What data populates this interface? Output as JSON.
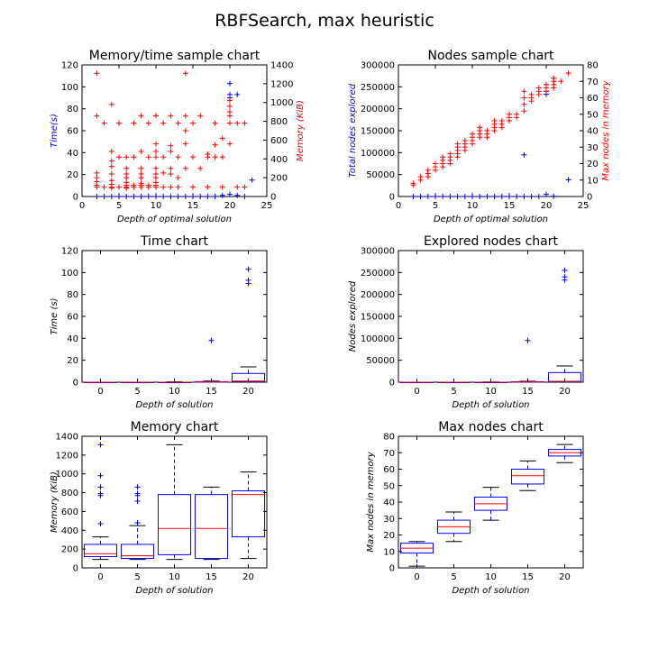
{
  "figure": {
    "title": "RBFSearch, max heuristic"
  },
  "colors": {
    "blue": "#0000ff",
    "red": "#ff0000",
    "axis": "#000000"
  },
  "chart_data": [
    {
      "id": "mem-time",
      "type": "scatter",
      "title": "Memory/time sample chart",
      "xlabel": "Depth of optimal solution",
      "ylabel": "Time(s)",
      "y2label": "Memory (KiB)",
      "xlim": [
        0,
        25
      ],
      "ylim": [
        0,
        120
      ],
      "y2lim": [
        0,
        1400
      ],
      "xticks": [
        0,
        5,
        10,
        15,
        20,
        25
      ],
      "yticks": [
        0,
        20,
        40,
        60,
        80,
        100,
        120
      ],
      "y2ticks": [
        0,
        200,
        400,
        600,
        800,
        1000,
        1200,
        1400
      ],
      "series": [
        {
          "axis": "left",
          "color": "#0000ff",
          "x": [
            2,
            3,
            4,
            5,
            6,
            7,
            8,
            9,
            10,
            11,
            12,
            13,
            14,
            15,
            16,
            17,
            18,
            19,
            20,
            20,
            20,
            20,
            21,
            21,
            22,
            23
          ],
          "y": [
            0,
            0,
            0,
            0,
            0,
            0,
            0,
            0,
            0,
            0,
            0,
            0,
            0,
            0,
            0,
            0,
            0,
            1,
            103,
            90,
            93,
            2,
            93,
            1,
            0,
            15
          ]
        },
        {
          "axis": "right",
          "color": "#ff0000",
          "x": [
            2,
            2,
            2,
            2,
            2,
            2,
            2,
            3,
            3,
            4,
            4,
            4,
            4,
            4,
            4,
            4,
            4,
            4,
            5,
            5,
            5,
            6,
            6,
            6,
            6,
            6,
            6,
            6,
            6,
            7,
            7,
            7,
            7,
            8,
            8,
            8,
            8,
            8,
            8,
            8,
            8,
            9,
            9,
            9,
            9,
            10,
            10,
            10,
            10,
            10,
            10,
            10,
            10,
            10,
            10,
            10,
            11,
            11,
            11,
            11,
            12,
            12,
            12,
            12,
            12,
            12,
            13,
            13,
            13,
            13,
            14,
            14,
            14,
            14,
            14,
            15,
            15,
            15,
            16,
            16,
            17,
            17,
            17,
            18,
            18,
            18,
            19,
            19,
            19,
            20,
            20,
            20,
            20,
            20,
            20,
            21,
            21,
            22,
            22
          ],
          "y": [
            1310,
            860,
            250,
            200,
            160,
            120,
            100,
            780,
            100,
            980,
            480,
            380,
            320,
            240,
            170,
            130,
            100,
            90,
            780,
            420,
            100,
            420,
            300,
            240,
            200,
            150,
            120,
            100,
            90,
            780,
            420,
            120,
            100,
            860,
            480,
            300,
            240,
            200,
            140,
            120,
            100,
            780,
            420,
            120,
            100,
            860,
            860,
            560,
            480,
            420,
            300,
            240,
            200,
            150,
            120,
            100,
            780,
            420,
            250,
            100,
            860,
            540,
            480,
            300,
            240,
            100,
            780,
            420,
            200,
            100,
            1310,
            860,
            700,
            560,
            300,
            780,
            420,
            100,
            860,
            300,
            420,
            450,
            100,
            780,
            550,
            420,
            620,
            420,
            100,
            1020,
            960,
            900,
            860,
            780,
            560,
            780,
            100,
            780,
            100
          ]
        }
      ]
    },
    {
      "id": "nodes-sample",
      "type": "scatter",
      "title": "Nodes sample chart",
      "xlabel": "Depth of optimal solution",
      "ylabel": "Total nodes explored",
      "y2label": "Max nodes in memory",
      "xlim": [
        0,
        25
      ],
      "ylim": [
        0,
        300000
      ],
      "y2lim": [
        0,
        80
      ],
      "xticks": [
        0,
        5,
        10,
        15,
        20,
        25
      ],
      "yticks": [
        0,
        50000,
        100000,
        150000,
        200000,
        250000,
        300000
      ],
      "y2ticks": [
        0,
        10,
        20,
        30,
        40,
        50,
        60,
        70,
        80
      ],
      "series": [
        {
          "axis": "left",
          "color": "#0000ff",
          "x": [
            2,
            3,
            4,
            5,
            6,
            7,
            8,
            9,
            10,
            11,
            12,
            13,
            14,
            15,
            16,
            17,
            17,
            18,
            19,
            20,
            20,
            20,
            20,
            21,
            23
          ],
          "y": [
            0,
            0,
            0,
            0,
            0,
            0,
            0,
            0,
            0,
            0,
            0,
            0,
            0,
            0,
            0,
            0,
            95000,
            0,
            0,
            255000,
            240000,
            233000,
            5000,
            500,
            38000
          ]
        },
        {
          "axis": "right",
          "color": "#ff0000",
          "x": [
            2,
            2,
            3,
            3,
            4,
            4,
            4,
            5,
            5,
            5,
            6,
            6,
            6,
            6,
            7,
            7,
            7,
            7,
            8,
            8,
            8,
            8,
            8,
            9,
            9,
            9,
            9,
            10,
            10,
            10,
            10,
            11,
            11,
            11,
            11,
            12,
            12,
            12,
            13,
            13,
            13,
            13,
            14,
            14,
            14,
            15,
            15,
            15,
            16,
            16,
            17,
            17,
            17,
            17,
            18,
            18,
            18,
            19,
            19,
            19,
            20,
            20,
            20,
            21,
            21,
            21,
            21,
            22,
            23
          ],
          "y": [
            8,
            7,
            12,
            10,
            16,
            14,
            12,
            20,
            18,
            16,
            24,
            22,
            20,
            18,
            26,
            24,
            22,
            20,
            32,
            30,
            28,
            26,
            24,
            34,
            32,
            30,
            28,
            38,
            36,
            34,
            32,
            42,
            40,
            38,
            36,
            40,
            38,
            36,
            46,
            44,
            42,
            40,
            46,
            44,
            42,
            50,
            48,
            46,
            50,
            48,
            64,
            60,
            56,
            52,
            62,
            60,
            58,
            66,
            64,
            62,
            68,
            66,
            64,
            72,
            70,
            68,
            66,
            70,
            75
          ]
        }
      ]
    },
    {
      "id": "time-box",
      "type": "box",
      "title": "Time chart",
      "xlabel": "Depth of solution",
      "ylabel": "Time (s)",
      "xlim": [
        -2.5,
        22.5
      ],
      "ylim": [
        0,
        120
      ],
      "xticks": [
        0,
        5,
        10,
        15,
        20
      ],
      "yticks": [
        0,
        20,
        40,
        60,
        80,
        100,
        120
      ],
      "boxes": [
        {
          "x": 0,
          "whislo": 0,
          "q1": 0,
          "med": 0,
          "q3": 0,
          "whishi": 0,
          "fliers": []
        },
        {
          "x": 5,
          "whislo": 0,
          "q1": 0,
          "med": 0,
          "q3": 0,
          "whishi": 0,
          "fliers": []
        },
        {
          "x": 10,
          "whislo": 0,
          "q1": 0,
          "med": 0,
          "q3": 0,
          "whishi": 0.3,
          "fliers": []
        },
        {
          "x": 15,
          "whislo": 0,
          "q1": 0,
          "med": 0.2,
          "q3": 0.5,
          "whishi": 1,
          "fliers": [
            38
          ]
        },
        {
          "x": 20,
          "whislo": 0,
          "q1": 0.5,
          "med": 1,
          "q3": 8,
          "whishi": 14,
          "fliers": [
            90,
            93,
            103
          ]
        }
      ]
    },
    {
      "id": "nodes-box",
      "type": "box",
      "title": "Explored nodes chart",
      "xlabel": "Depth of solution",
      "ylabel": "Nodes explored",
      "xlim": [
        -2.5,
        22.5
      ],
      "ylim": [
        0,
        300000
      ],
      "xticks": [
        0,
        5,
        10,
        15,
        20
      ],
      "yticks": [
        0,
        50000,
        100000,
        150000,
        200000,
        250000,
        300000
      ],
      "boxes": [
        {
          "x": 0,
          "whislo": 0,
          "q1": 0,
          "med": 0,
          "q3": 0,
          "whishi": 0,
          "fliers": []
        },
        {
          "x": 5,
          "whislo": 0,
          "q1": 0,
          "med": 0,
          "q3": 0,
          "whishi": 0,
          "fliers": []
        },
        {
          "x": 10,
          "whislo": 0,
          "q1": 0,
          "med": 0,
          "q3": 0,
          "whishi": 500,
          "fliers": []
        },
        {
          "x": 15,
          "whislo": 0,
          "q1": 0,
          "med": 500,
          "q3": 1000,
          "whishi": 2000,
          "fliers": [
            95000
          ]
        },
        {
          "x": 20,
          "whislo": 0,
          "q1": 1000,
          "med": 2000,
          "q3": 22000,
          "whishi": 37000,
          "fliers": [
            233000,
            240000,
            255000
          ]
        }
      ]
    },
    {
      "id": "memory-box",
      "type": "box",
      "title": "Memory chart",
      "xlabel": "Depth of solution",
      "ylabel": "Memory (KiB)",
      "xlim": [
        -2.5,
        22.5
      ],
      "ylim": [
        0,
        1400
      ],
      "xticks": [
        0,
        5,
        10,
        15,
        20
      ],
      "yticks": [
        0,
        200,
        400,
        600,
        800,
        1000,
        1200,
        1400
      ],
      "boxes": [
        {
          "x": 0,
          "whislo": 90,
          "q1": 120,
          "med": 150,
          "q3": 250,
          "whishi": 330,
          "fliers": [
            470,
            770,
            790,
            860,
            980,
            1310
          ]
        },
        {
          "x": 5,
          "whislo": 90,
          "q1": 100,
          "med": 130,
          "q3": 250,
          "whishi": 450,
          "fliers": [
            480,
            710,
            770,
            790,
            860
          ]
        },
        {
          "x": 10,
          "whislo": 90,
          "q1": 140,
          "med": 420,
          "q3": 780,
          "whishi": 1310,
          "fliers": []
        },
        {
          "x": 15,
          "whislo": 90,
          "q1": 100,
          "med": 420,
          "q3": 780,
          "whishi": 860,
          "fliers": []
        },
        {
          "x": 20,
          "whislo": 100,
          "q1": 330,
          "med": 780,
          "q3": 820,
          "whishi": 1020,
          "fliers": []
        }
      ]
    },
    {
      "id": "maxnodes-box",
      "type": "box",
      "title": "Max nodes chart",
      "xlabel": "Depth of solution",
      "ylabel": "Max nodes in memory",
      "xlim": [
        -2.5,
        22.5
      ],
      "ylim": [
        0,
        80
      ],
      "xticks": [
        0,
        5,
        10,
        15,
        20
      ],
      "yticks": [
        0,
        10,
        20,
        30,
        40,
        50,
        60,
        70,
        80
      ],
      "boxes": [
        {
          "x": 0,
          "whislo": 1,
          "q1": 9,
          "med": 12,
          "q3": 15,
          "whishi": 16,
          "fliers": []
        },
        {
          "x": 5,
          "whislo": 16,
          "q1": 21,
          "med": 25,
          "q3": 29,
          "whishi": 34,
          "fliers": []
        },
        {
          "x": 10,
          "whislo": 29,
          "q1": 35,
          "med": 39,
          "q3": 43,
          "whishi": 49,
          "fliers": []
        },
        {
          "x": 15,
          "whislo": 47,
          "q1": 51,
          "med": 56,
          "q3": 60,
          "whishi": 65,
          "fliers": []
        },
        {
          "x": 20,
          "whislo": 64,
          "q1": 68,
          "med": 70,
          "q3": 72,
          "whishi": 75,
          "fliers": []
        }
      ]
    }
  ]
}
